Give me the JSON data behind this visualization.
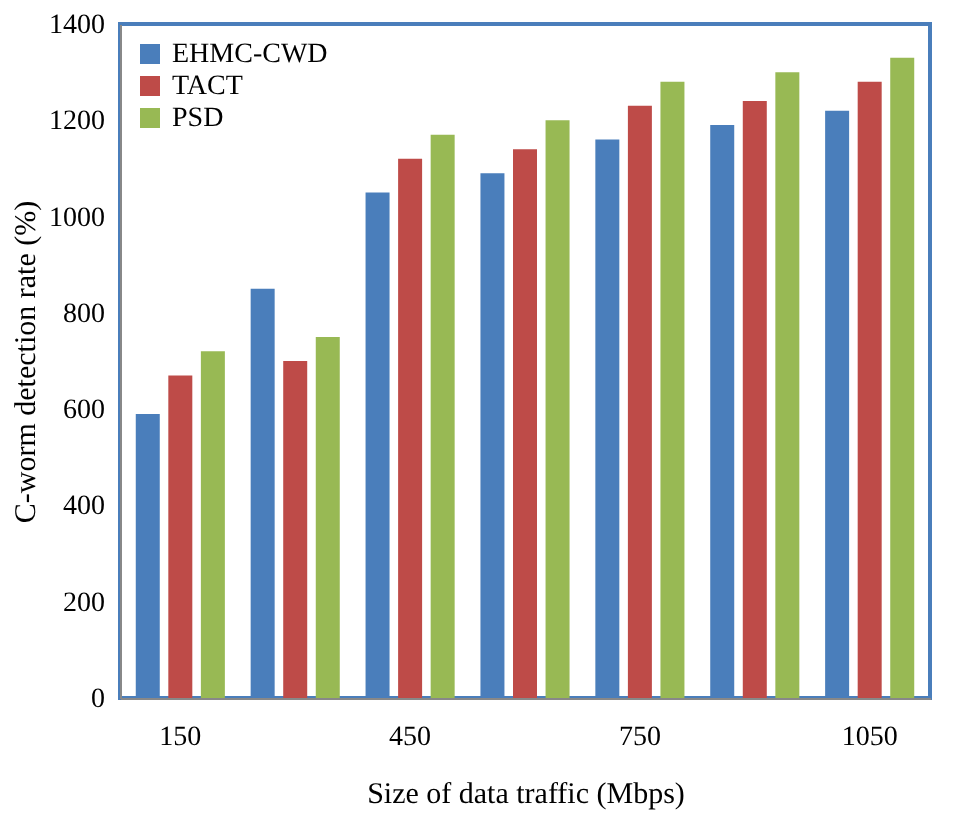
{
  "chart_data": {
    "type": "bar",
    "xlabel": "Size of data traffic (Mbps)",
    "ylabel": "C-worm detection rate (%)",
    "categories": [
      "150",
      null,
      "450",
      null,
      "750",
      null,
      "1050"
    ],
    "series": [
      {
        "name": "EHMC-CWD",
        "color": "#4a7ebb",
        "values": [
          590,
          850,
          1050,
          1090,
          1160,
          1190,
          1220
        ]
      },
      {
        "name": "TACT",
        "color": "#be4b48",
        "values": [
          670,
          700,
          1120,
          1140,
          1230,
          1240,
          1280
        ]
      },
      {
        "name": "PSD",
        "color": "#98b954",
        "values": [
          720,
          750,
          1170,
          1200,
          1280,
          1300,
          1330
        ]
      }
    ],
    "ylim": [
      0,
      1400
    ],
    "yticks": [
      0,
      200,
      400,
      600,
      800,
      1000,
      1200,
      1400
    ],
    "grid": false,
    "legend": "top left"
  }
}
